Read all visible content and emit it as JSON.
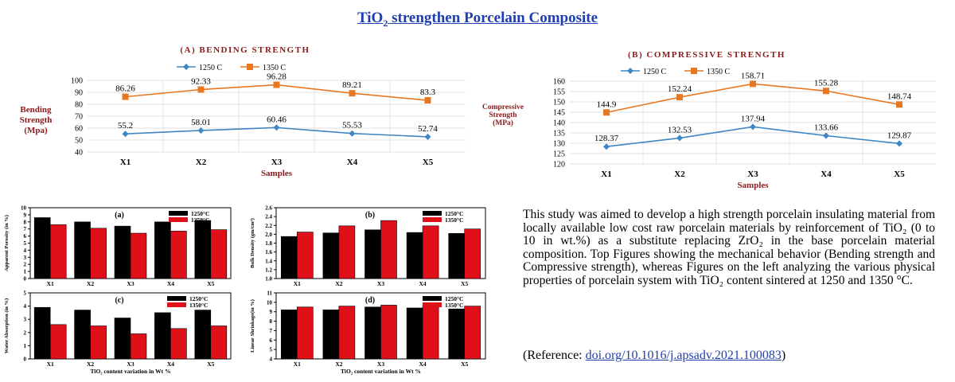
{
  "title": {
    "pre": "TiO",
    "sub": "2",
    "post": " strengthen Porcelain Composite"
  },
  "paragraph": "This study was aimed to develop a high strength porcelain insulating material from locally available low cost raw porcelain materials by reinforcement of TiO₂ (0 to 10 in wt.%) as a substitute replacing ZrO₂ in the base porcelain material composition. Top Figures showing the mechanical behavior (Bending strength and Compressive strength), whereas Figures on the left analyzing the various physical properties of porcelain system with TiO₂ content sintered at 1250 and 1350 °C.",
  "reference": {
    "prefix": "(Reference: ",
    "link": "doi.org/10.1016/j.apsadv.2021.100083",
    "suffix": ")"
  },
  "colors": {
    "blue": "#3f86c4",
    "orange": "#e87722",
    "black": "#000000",
    "red": "#e0101b",
    "title": "#1f3fae"
  },
  "chart_data": [
    {
      "id": "bending",
      "type": "line",
      "title": "(A) BENDING STRENGTH",
      "ylabel": [
        "Bending",
        "Strength",
        "(Mpa)"
      ],
      "xlabel": "Samples",
      "categories": [
        "X1",
        "X2",
        "X3",
        "X4",
        "X5"
      ],
      "ylim": [
        40,
        100
      ],
      "ystep": 10,
      "legend": "top",
      "series": [
        {
          "name": "1250 C",
          "values": [
            55.2,
            58.01,
            60.46,
            55.53,
            52.74
          ],
          "labels": [
            "55.2",
            "58.01",
            "60.46",
            "55.53",
            "52.74"
          ],
          "color": "#3f86c4",
          "marker": "diamond"
        },
        {
          "name": "1350 C",
          "values": [
            86.26,
            92.33,
            96.28,
            89.21,
            83.3
          ],
          "labels": [
            "86.26",
            "92.33",
            "96.28",
            "89.21",
            "83.3"
          ],
          "color": "#e87722",
          "marker": "square"
        }
      ]
    },
    {
      "id": "compressive",
      "type": "line",
      "title": "(B) COMPRESSIVE STRENGTH",
      "ylabel": [
        "Compressive",
        "Strength",
        "(MPa)"
      ],
      "xlabel": "Samples",
      "categories": [
        "X1",
        "X2",
        "X3",
        "X4",
        "X5"
      ],
      "ylim": [
        120,
        160
      ],
      "ystep": 5,
      "legend": "top",
      "series": [
        {
          "name": "1250 C",
          "values": [
            128.37,
            132.53,
            137.94,
            133.66,
            129.87
          ],
          "labels": [
            "128.37",
            "132.53",
            "137.94",
            "133.66",
            "129.87"
          ],
          "color": "#3f86c4",
          "marker": "diamond"
        },
        {
          "name": "1350 C",
          "values": [
            144.9,
            152.24,
            158.71,
            155.28,
            148.74
          ],
          "labels": [
            "144.9",
            "152.24",
            "158.71",
            "155.28",
            "148.74"
          ],
          "color": "#e87722",
          "marker": "square"
        }
      ]
    },
    {
      "id": "a",
      "type": "bar",
      "panel": "(a)",
      "ylabel": "Apparent Porosity (in %)",
      "xlabel": "",
      "categories": [
        "X1",
        "X2",
        "X3",
        "X4",
        "X5"
      ],
      "ylim": [
        0,
        10
      ],
      "ystep": 1,
      "legend": "top-right",
      "series": [
        {
          "name": "1250°C",
          "values": [
            8.6,
            8.0,
            7.4,
            8.0,
            8.2
          ],
          "color": "#000000"
        },
        {
          "name": "1350°C",
          "values": [
            7.6,
            7.1,
            6.4,
            6.7,
            6.9
          ],
          "color": "#e0101b"
        }
      ]
    },
    {
      "id": "b",
      "type": "bar",
      "panel": "(b)",
      "ylabel": "Bulk Density (gm/cm³)",
      "xlabel": "",
      "categories": [
        "X1",
        "X2",
        "X3",
        "X4",
        "X5"
      ],
      "ylim": [
        1.0,
        2.6
      ],
      "ystep": 0.2,
      "decimals": 1,
      "legend": "top-right",
      "series": [
        {
          "name": "1250°C",
          "values": [
            1.95,
            2.03,
            2.1,
            2.04,
            2.02
          ],
          "color": "#000000"
        },
        {
          "name": "1350°C",
          "values": [
            2.05,
            2.19,
            2.31,
            2.19,
            2.12
          ],
          "color": "#e0101b"
        }
      ]
    },
    {
      "id": "c",
      "type": "bar",
      "panel": "(c)",
      "ylabel": "Water Absorption (in %)",
      "xlabel": "TiO₂ content variation in Wt %",
      "categories": [
        "X1",
        "X2",
        "X3",
        "X4",
        "X5"
      ],
      "ylim": [
        0,
        5
      ],
      "ystep": 1,
      "legend": "top-right",
      "series": [
        {
          "name": "1250°C",
          "values": [
            3.9,
            3.7,
            3.1,
            3.5,
            3.7
          ],
          "color": "#000000"
        },
        {
          "name": "1350°C",
          "values": [
            2.6,
            2.5,
            1.9,
            2.3,
            2.5
          ],
          "color": "#e0101b"
        }
      ]
    },
    {
      "id": "d",
      "type": "bar",
      "panel": "(d)",
      "ylabel": "Linear Shrinkage(in %)",
      "xlabel": "TiO₂ content variation in Wt %",
      "categories": [
        "X1",
        "X2",
        "X3",
        "X4",
        "X5"
      ],
      "ylim": [
        4,
        11
      ],
      "ystep": 1,
      "legend": "top-right",
      "series": [
        {
          "name": "1250°C",
          "values": [
            9.2,
            9.2,
            9.5,
            9.4,
            9.3
          ],
          "color": "#000000"
        },
        {
          "name": "1350°C",
          "values": [
            9.5,
            9.6,
            9.7,
            9.7,
            9.6
          ],
          "color": "#e0101b"
        }
      ]
    }
  ]
}
